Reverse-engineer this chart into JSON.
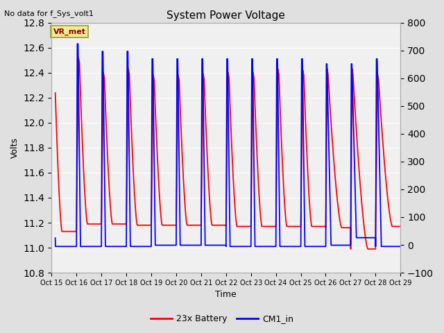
{
  "title": "System Power Voltage",
  "top_left_text": "No data for f_Sys_volt1",
  "ylabel_left": "Volts",
  "xlabel": "Time",
  "ylim_left": [
    10.8,
    12.8
  ],
  "ylim_right": [
    -100,
    800
  ],
  "yticks_left": [
    10.8,
    11.0,
    11.2,
    11.4,
    11.6,
    11.8,
    12.0,
    12.2,
    12.4,
    12.6,
    12.8
  ],
  "yticks_right": [
    -100,
    0,
    100,
    200,
    300,
    400,
    500,
    600,
    700,
    800
  ],
  "xtick_labels": [
    "Oct 15",
    "Oct 16",
    "Oct 17",
    "Oct 18",
    "Oct 19",
    "Oct 20",
    "Oct 21",
    "Oct 22",
    "Oct 23",
    "Oct 24",
    "Oct 25",
    "Oct 26",
    "Oct 27",
    "Oct 28",
    "Oct 29"
  ],
  "fig_bg_color": "#e0e0e0",
  "plot_bg_color": "#f0f0f0",
  "grid_color": "#ffffff",
  "legend_items": [
    "23x Battery",
    "CM1_in"
  ],
  "legend_colors": [
    "red",
    "blue"
  ],
  "vr_met_box_facecolor": "#eeee99",
  "vr_met_box_edgecolor": "#999933",
  "vr_met_text_color": "#990000",
  "line_red_color": "red",
  "line_blue_color": "blue",
  "line_width": 1.3
}
